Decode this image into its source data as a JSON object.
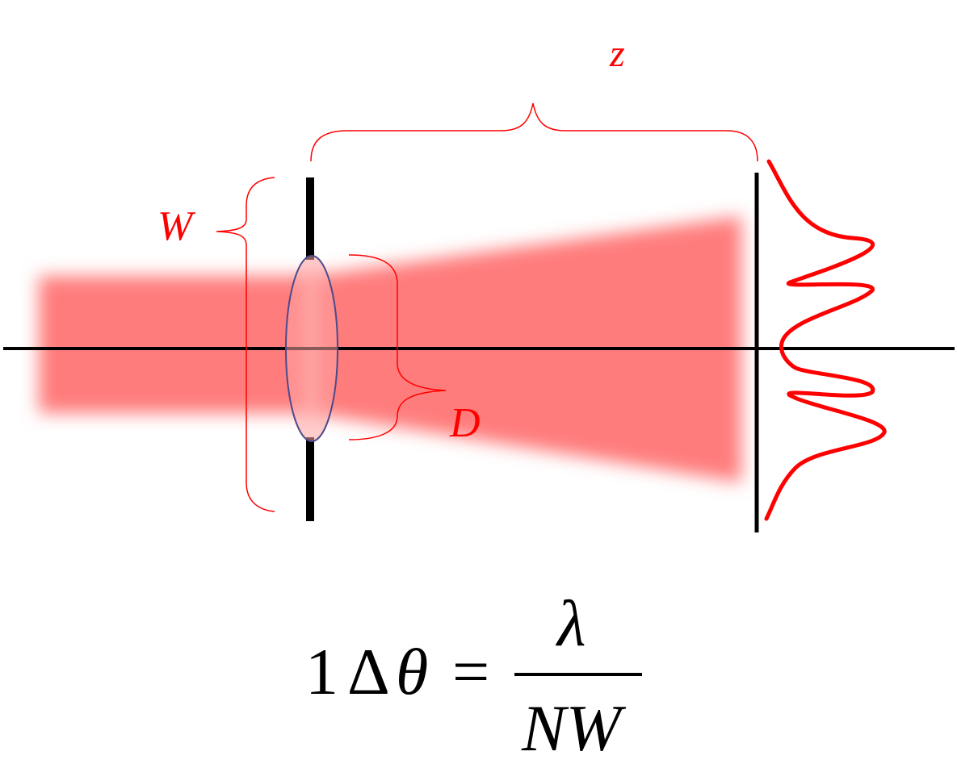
{
  "labels": {
    "z": "z",
    "w": "W",
    "d": "D"
  },
  "formula": {
    "prefix": "1",
    "delta": "Δ",
    "theta": "θ",
    "equals": "=",
    "numerator": "λ",
    "denominator": "NW"
  },
  "colors": {
    "accent": "#ff0000",
    "beam": "#ff7b7b",
    "axis": "#000000",
    "lens_outline": "#4a4a8c"
  },
  "icons": {
    "lens": "lens-ellipse-icon",
    "intensity": "diffraction-pattern-curve"
  }
}
